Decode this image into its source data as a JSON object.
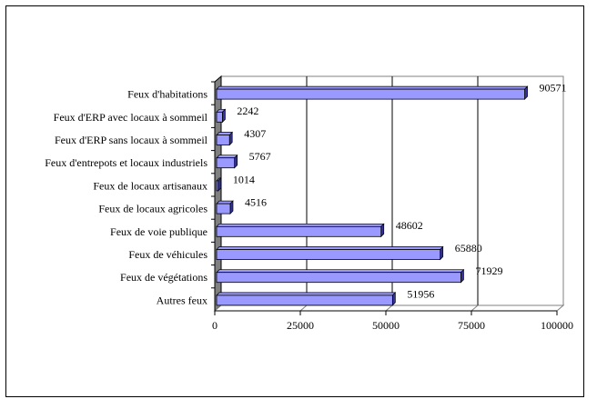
{
  "chart_data": {
    "type": "bar",
    "orientation": "horizontal",
    "title": "",
    "xlabel": "",
    "ylabel": "",
    "categories": [
      "Feux d'habitations",
      "Feux d'ERP avec locaux à sommeil",
      "Feux d'ERP sans locaux à sommeil",
      "Feux d'entrepots et locaux industriels",
      "Feux de locaux artisanaux",
      "Feux de locaux agricoles",
      "Feux de voie publique",
      "Feux de véhicules",
      "Feux de végétations",
      "Autres feux"
    ],
    "values": [
      90571,
      2242,
      4307,
      5767,
      1014,
      4516,
      48602,
      65880,
      71929,
      51956
    ],
    "xlim": [
      0,
      100000
    ],
    "xticks": [
      "0",
      "25000",
      "50000",
      "75000",
      "100000"
    ],
    "grid": true,
    "legend": "none",
    "colors": {
      "bar": "#9999ff",
      "bar_side": "#333399",
      "wall": "#808080"
    }
  }
}
